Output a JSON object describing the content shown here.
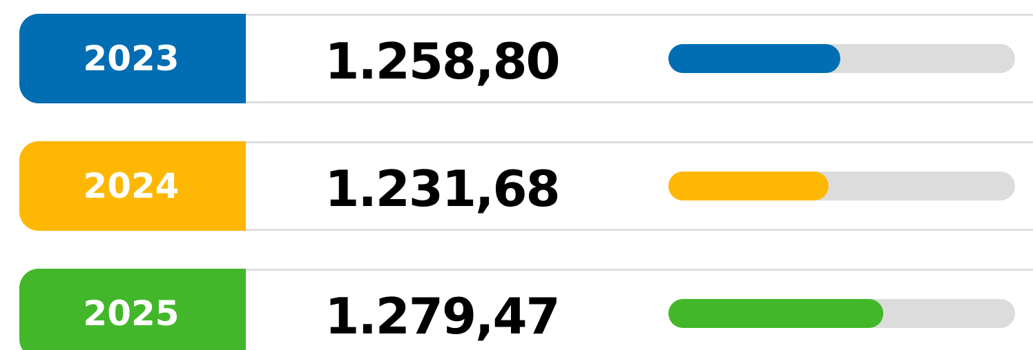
{
  "rows": [
    {
      "label": "2023",
      "value": "1.258,80",
      "color": "#016db3",
      "progress": 49.6
    },
    {
      "label": "2024",
      "value": "1.231,68",
      "color": "#feb702",
      "progress": 46.2
    },
    {
      "label": "2025",
      "value": "1.279,47",
      "color": "#43b72a",
      "progress": 62
    }
  ],
  "progress_lim": [
    0,
    100
  ]
}
